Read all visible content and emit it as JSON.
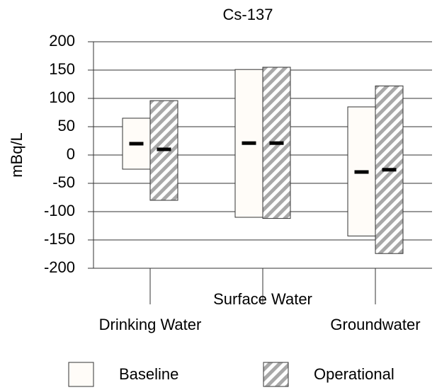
{
  "chart_data": {
    "type": "floating_bar",
    "title": "Cs-137",
    "y_label": "mBq/L",
    "categories": [
      "Drinking Water",
      "Surface Water",
      "Groundwater"
    ],
    "series": [
      {
        "name": "Baseline",
        "color": "#fffcf8",
        "low": [
          -25,
          -110,
          -143
        ],
        "high": [
          65,
          151,
          85
        ],
        "mean": [
          20,
          21,
          -30
        ]
      },
      {
        "name": "Operational",
        "color": "#a8a8a8",
        "hatch": true,
        "low": [
          -80,
          -112,
          -174
        ],
        "high": [
          96,
          155,
          122
        ],
        "mean": [
          10,
          21,
          -26
        ]
      }
    ],
    "ylim": [
      -200,
      200
    ],
    "yticks": [
      -200,
      -150,
      -100,
      -50,
      0,
      50,
      100,
      150,
      200
    ],
    "grid": true
  }
}
